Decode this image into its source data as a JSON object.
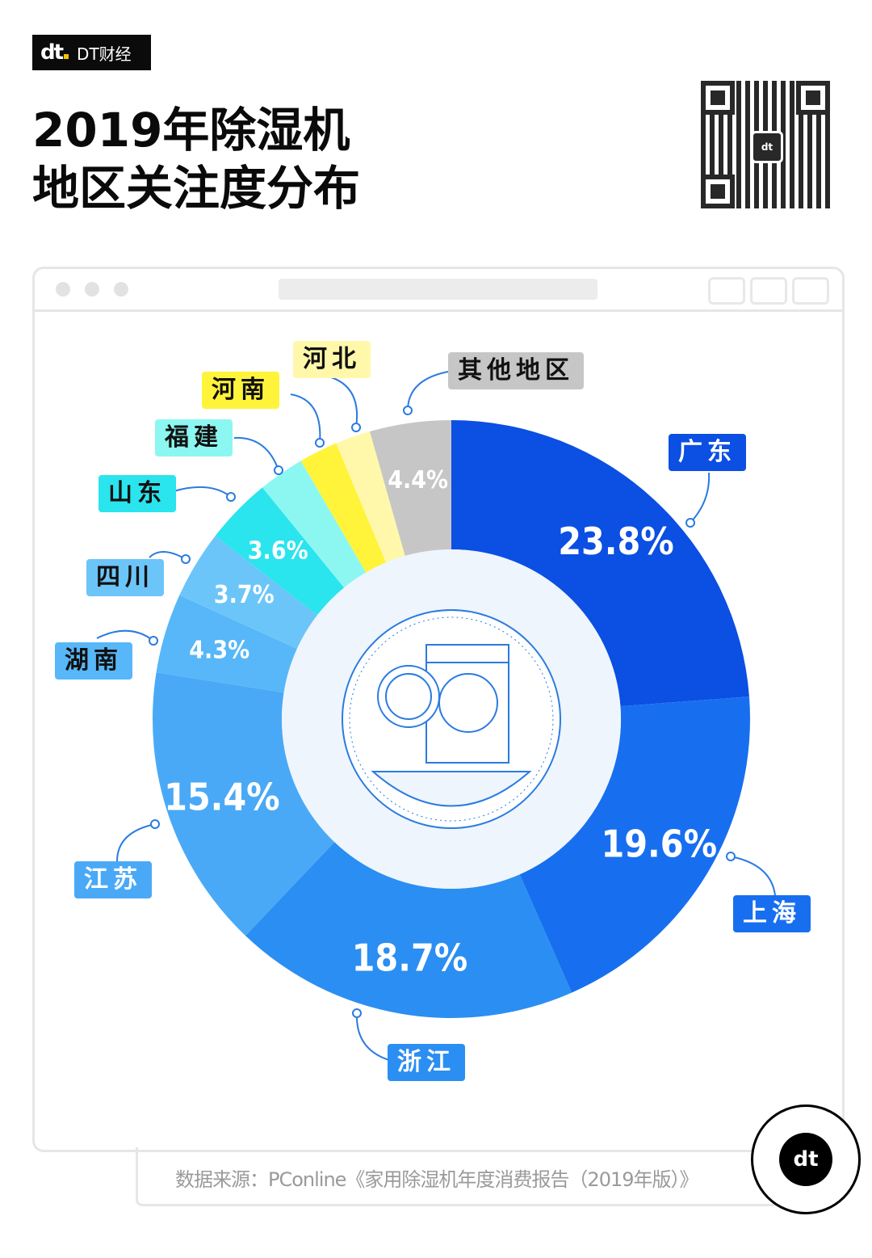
{
  "brand": {
    "logo": "dt",
    "name": "DT财经"
  },
  "title": {
    "line1": "2019年除湿机",
    "line2": "地区关注度分布"
  },
  "source": "数据来源：PConline《家用除湿机年度消费报告（2019年版）》",
  "badge": "dt",
  "chart_data": {
    "type": "pie",
    "title": "2019年除湿机地区关注度分布",
    "donut": true,
    "unit": "%",
    "slices": [
      {
        "name": "广东",
        "value": 23.8,
        "label": "23.8%",
        "color": "#0b4fe3"
      },
      {
        "name": "上海",
        "value": 19.6,
        "label": "19.6%",
        "color": "#176ff0"
      },
      {
        "name": "浙江",
        "value": 18.7,
        "label": "18.7%",
        "color": "#2b8ef2"
      },
      {
        "name": "江苏",
        "value": 15.4,
        "label": "15.4%",
        "color": "#4aa9f6"
      },
      {
        "name": "湖南",
        "value": 4.3,
        "label": "4.3%",
        "color": "#57b7f8"
      },
      {
        "name": "四川",
        "value": 3.7,
        "label": "3.7%",
        "color": "#6cc5f9"
      },
      {
        "name": "山东",
        "value": 3.6,
        "label": "3.6%",
        "color": "#2ae4ee"
      },
      {
        "name": "福建",
        "value": 2.5,
        "label": null,
        "color": "#8cf7f0"
      },
      {
        "name": "河南",
        "value": 2.1,
        "label": null,
        "color": "#fff43a"
      },
      {
        "name": "河北",
        "value": 1.9,
        "label": null,
        "color": "#fff8aa"
      },
      {
        "name": "其他地区",
        "value": 4.4,
        "label": "4.4%",
        "color": "#c6c6c6"
      }
    ]
  }
}
